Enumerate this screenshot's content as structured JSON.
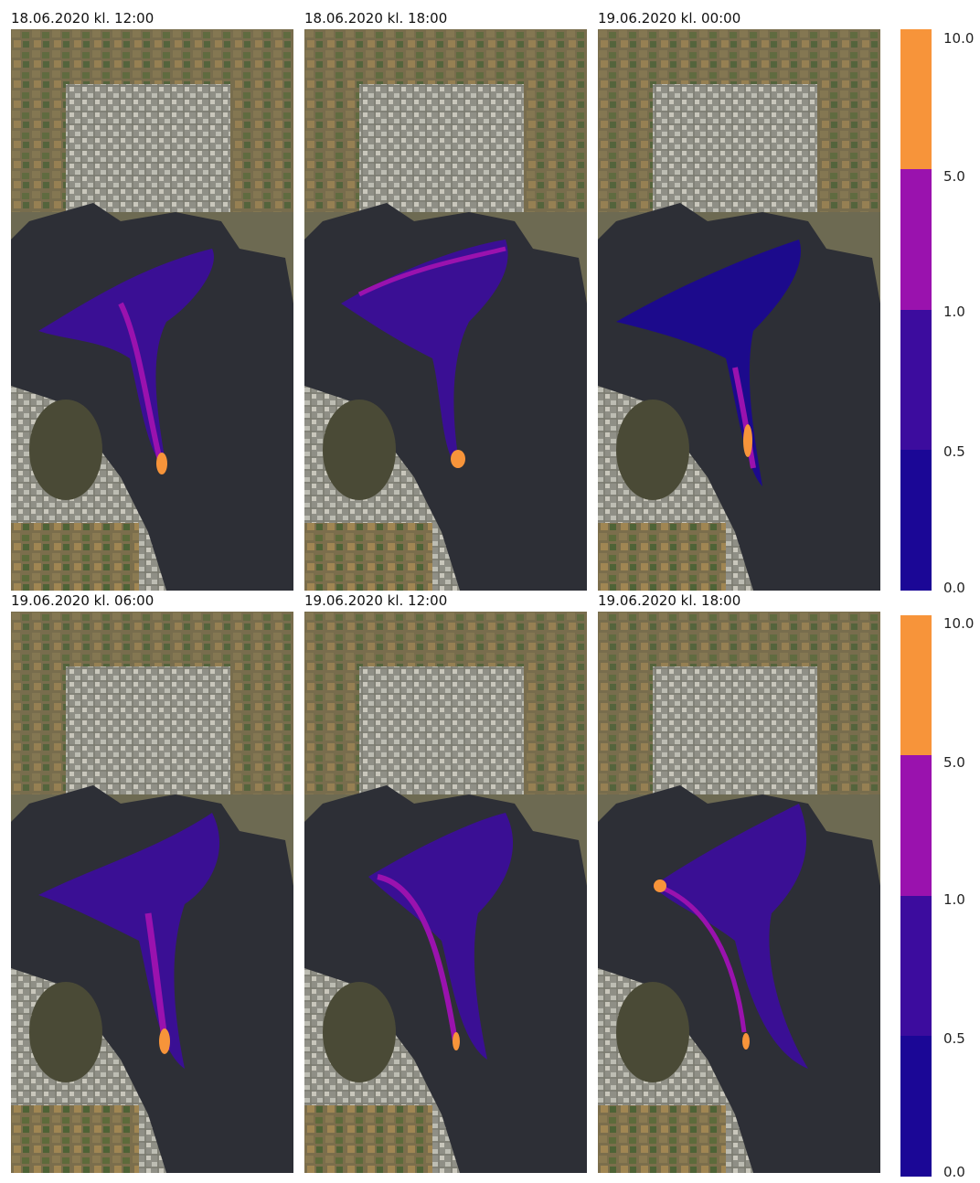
{
  "panels": [
    {
      "title": "18.06.2020 kl. 12:00"
    },
    {
      "title": "18.06.2020 kl. 18:00"
    },
    {
      "title": "19.06.2020 kl. 00:00"
    },
    {
      "title": "19.06.2020 kl. 06:00"
    },
    {
      "title": "19.06.2020 kl. 12:00"
    },
    {
      "title": "19.06.2020 kl. 18:00"
    }
  ],
  "colorbar": {
    "ticks": [
      "10.0",
      "5.0",
      "1.0",
      "0.5",
      "0.0"
    ],
    "bins": [
      {
        "from": 5.0,
        "to": 10.0,
        "color": "#f7943a"
      },
      {
        "from": 1.0,
        "to": 5.0,
        "color": "#9a12ae"
      },
      {
        "from": 0.5,
        "to": 1.0,
        "color": "#3c0c9e"
      },
      {
        "from": 0.0,
        "to": 0.5,
        "color": "#1b0796"
      }
    ]
  },
  "colors": {
    "water": "#2d2f36",
    "land": "#6d6a52",
    "urban": "#a5a59c",
    "vegetation": "#4f6a38"
  }
}
